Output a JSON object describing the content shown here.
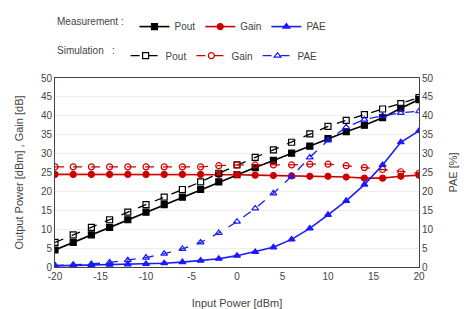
{
  "chart_data": {
    "type": "line",
    "x": [
      -20,
      -18,
      -16,
      -14,
      -12,
      -10,
      -8,
      -6,
      -4,
      -2,
      0,
      2,
      4,
      6,
      8,
      10,
      12,
      14,
      16,
      18,
      20
    ],
    "xlabel": "Input Power [dBm]",
    "ylabel": "Output Power [dBm] , Gain [dB]",
    "y2label": "PAE [%]",
    "xlim": [
      -20,
      20
    ],
    "xticks": [
      -20,
      -15,
      -10,
      -5,
      0,
      5,
      10,
      15,
      20
    ],
    "ylim": [
      0,
      50
    ],
    "yticks": [
      0,
      5,
      10,
      15,
      20,
      25,
      30,
      35,
      40,
      45,
      50
    ],
    "y2lim": [
      0,
      50
    ],
    "y2ticks": [
      0,
      5,
      10,
      15,
      20,
      25,
      30,
      35,
      40,
      45,
      50
    ],
    "grid": true,
    "legend": "top",
    "series": [
      {
        "name": "Pout",
        "group": "Measurement : ",
        "color": "#000000",
        "marker": "square",
        "line_style": "solid",
        "values": [
          4.5,
          6.5,
          8.5,
          10.5,
          12.5,
          14.5,
          16.5,
          18.5,
          20.5,
          22.5,
          24.4,
          26.3,
          28.2,
          30.1,
          32.0,
          34.0,
          35.8,
          37.5,
          39.5,
          42.0,
          44.3
        ]
      },
      {
        "name": "Gain",
        "group": "Measurement : ",
        "color": "#cc0000",
        "marker": "circle",
        "line_style": "solid",
        "values": [
          24.5,
          24.5,
          24.5,
          24.5,
          24.5,
          24.5,
          24.5,
          24.5,
          24.5,
          24.5,
          24.4,
          24.3,
          24.2,
          24.1,
          24.0,
          24.0,
          23.8,
          23.5,
          23.5,
          24.0,
          24.3
        ]
      },
      {
        "name": "PAE",
        "group": "Measurement : ",
        "color": "#1a1aff",
        "marker": "triangle-up",
        "line_style": "solid",
        "axis": "y2",
        "values": [
          0.3,
          0.4,
          0.5,
          0.6,
          0.7,
          0.8,
          1.0,
          1.3,
          1.7,
          2.2,
          3.0,
          4.0,
          5.2,
          7.3,
          10.2,
          13.8,
          17.5,
          21.8,
          27.0,
          33.0,
          36.0
        ]
      },
      {
        "name": "Pout",
        "group": "Simulation   : ",
        "color": "#000000",
        "marker": "square-open",
        "line_style": "dash",
        "values": [
          6.5,
          8.5,
          10.5,
          12.5,
          14.5,
          16.5,
          18.5,
          20.5,
          22.5,
          24.8,
          27.0,
          29.0,
          31.0,
          33.0,
          35.2,
          37.2,
          38.8,
          40.3,
          41.8,
          43.2,
          44.8
        ]
      },
      {
        "name": "Gain",
        "group": "Simulation   : ",
        "color": "#cc0000",
        "marker": "circle-open",
        "line_style": "dash",
        "values": [
          26.5,
          26.5,
          26.5,
          26.5,
          26.5,
          26.5,
          26.5,
          26.5,
          26.5,
          26.8,
          27.0,
          27.0,
          27.0,
          27.0,
          27.2,
          27.2,
          26.8,
          26.3,
          25.8,
          25.2,
          24.8
        ]
      },
      {
        "name": "PAE",
        "group": "Simulation   : ",
        "color": "#1a1aff",
        "marker": "triangle-up-open",
        "line_style": "dash",
        "axis": "y2",
        "values": [
          0.4,
          0.6,
          0.8,
          1.2,
          1.8,
          2.5,
          3.5,
          4.8,
          6.5,
          9.0,
          12.0,
          15.5,
          19.5,
          24.0,
          29.0,
          33.5,
          37.0,
          39.0,
          40.0,
          40.8,
          41.2
        ]
      }
    ]
  }
}
